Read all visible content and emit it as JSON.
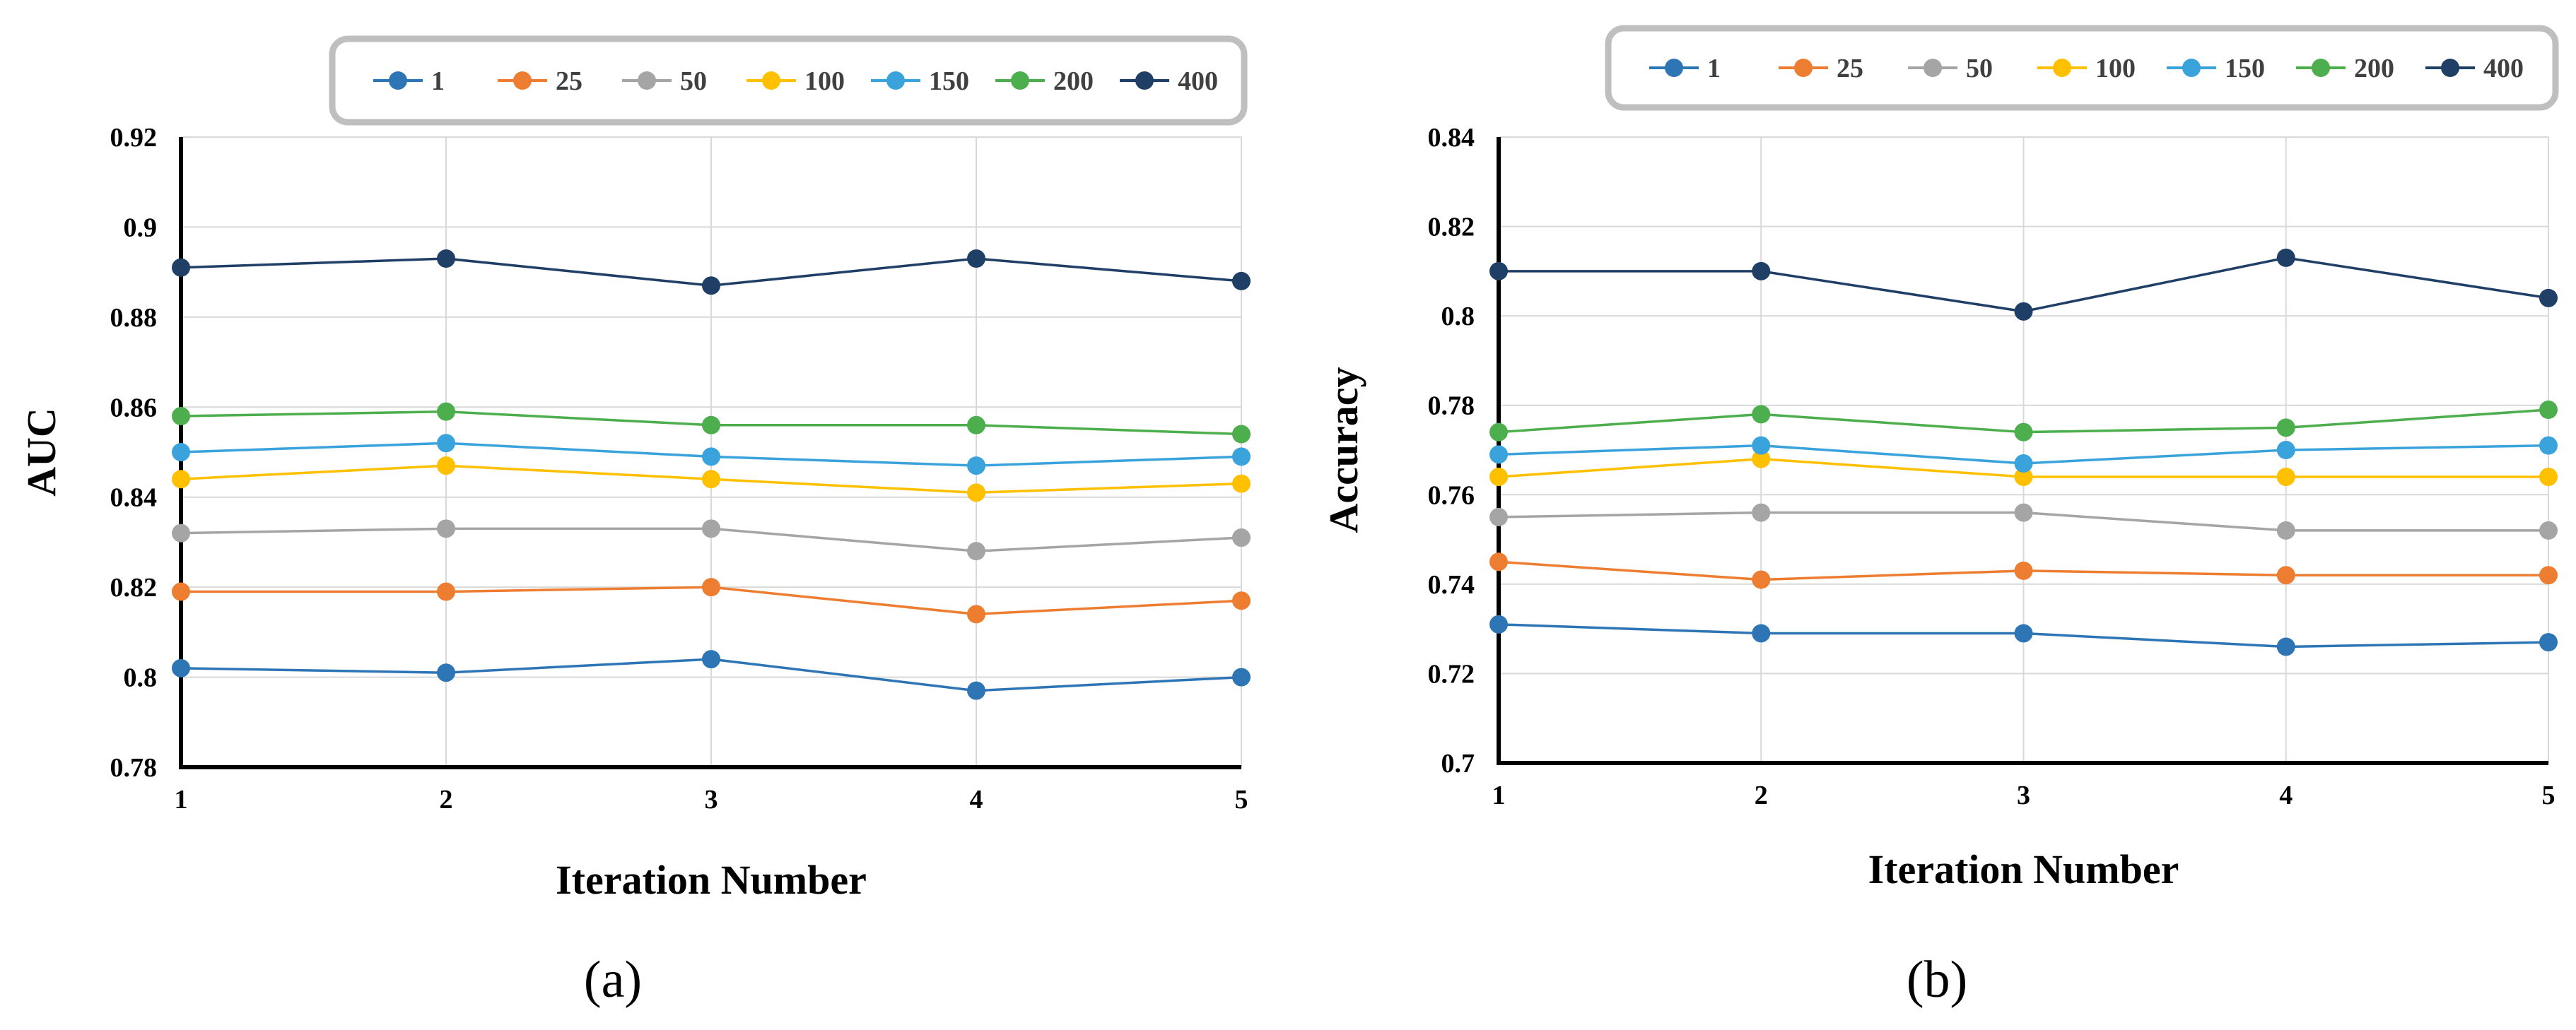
{
  "figure": {
    "panels": [
      {
        "label": "(a)"
      },
      {
        "label": "(b)"
      }
    ]
  },
  "chart_data": [
    {
      "type": "line",
      "xlabel": "Iteration Number",
      "ylabel": "AUC",
      "x": [
        1,
        2,
        3,
        4,
        5
      ],
      "ylim": [
        0.78,
        0.92
      ],
      "yticks": [
        0.78,
        0.8,
        0.82,
        0.84,
        0.86,
        0.88,
        0.9,
        0.92
      ],
      "ytick_labels": [
        "0.78",
        "0.8",
        "0.82",
        "0.84",
        "0.86",
        "0.88",
        "0.9",
        "0.92"
      ],
      "grid": true,
      "legend_position": "top-right",
      "series": [
        {
          "name": "1",
          "color": "#2e75b6",
          "values": [
            0.802,
            0.801,
            0.804,
            0.797,
            0.8
          ]
        },
        {
          "name": "25",
          "color": "#ed7d31",
          "values": [
            0.819,
            0.819,
            0.82,
            0.814,
            0.817
          ]
        },
        {
          "name": "50",
          "color": "#a5a5a5",
          "values": [
            0.832,
            0.833,
            0.833,
            0.828,
            0.831
          ]
        },
        {
          "name": "100",
          "color": "#ffc000",
          "values": [
            0.844,
            0.847,
            0.844,
            0.841,
            0.843
          ]
        },
        {
          "name": "150",
          "color": "#3ba3dc",
          "values": [
            0.85,
            0.852,
            0.849,
            0.847,
            0.849
          ]
        },
        {
          "name": "200",
          "color": "#4cae4c",
          "values": [
            0.858,
            0.859,
            0.856,
            0.856,
            0.854
          ]
        },
        {
          "name": "400",
          "color": "#1f3f66",
          "values": [
            0.891,
            0.893,
            0.887,
            0.893,
            0.888
          ]
        }
      ]
    },
    {
      "type": "line",
      "xlabel": "Iteration Number",
      "ylabel": "Accuracy",
      "x": [
        1,
        2,
        3,
        4,
        5
      ],
      "ylim": [
        0.7,
        0.84
      ],
      "yticks": [
        0.7,
        0.72,
        0.74,
        0.76,
        0.78,
        0.8,
        0.82,
        0.84
      ],
      "ytick_labels": [
        "0.7",
        "0.72",
        "0.74",
        "0.76",
        "0.78",
        "0.8",
        "0.82",
        "0.84"
      ],
      "grid": true,
      "legend_position": "top-right",
      "series": [
        {
          "name": "1",
          "color": "#2e75b6",
          "values": [
            0.731,
            0.729,
            0.729,
            0.726,
            0.727
          ]
        },
        {
          "name": "25",
          "color": "#ed7d31",
          "values": [
            0.745,
            0.741,
            0.743,
            0.742,
            0.742
          ]
        },
        {
          "name": "50",
          "color": "#a5a5a5",
          "values": [
            0.755,
            0.756,
            0.756,
            0.752,
            0.752
          ]
        },
        {
          "name": "100",
          "color": "#ffc000",
          "values": [
            0.764,
            0.768,
            0.764,
            0.764,
            0.764
          ]
        },
        {
          "name": "150",
          "color": "#3ba3dc",
          "values": [
            0.769,
            0.771,
            0.767,
            0.77,
            0.771
          ]
        },
        {
          "name": "200",
          "color": "#4cae4c",
          "values": [
            0.774,
            0.778,
            0.774,
            0.775,
            0.779
          ]
        },
        {
          "name": "400",
          "color": "#1f3f66",
          "values": [
            0.81,
            0.81,
            0.801,
            0.813,
            0.804
          ]
        }
      ]
    }
  ]
}
